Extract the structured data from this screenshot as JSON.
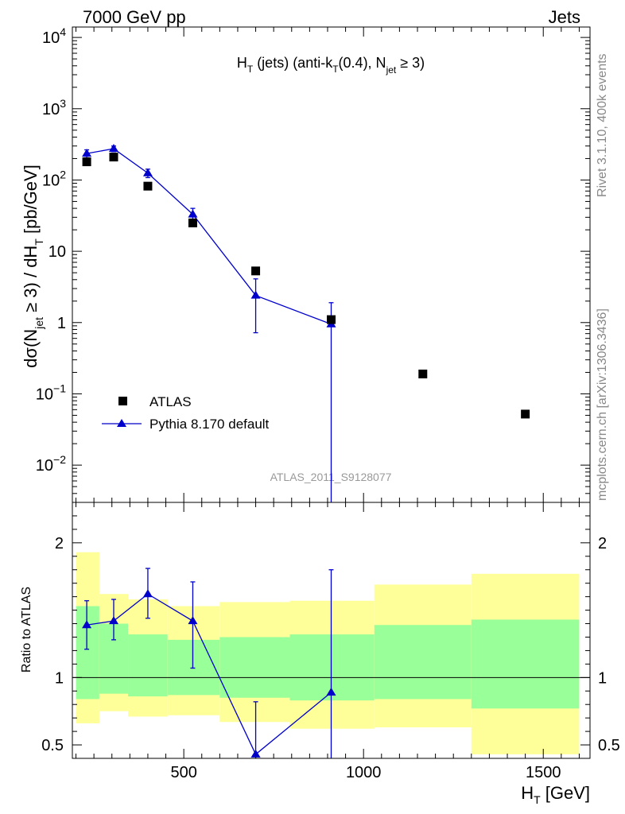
{
  "header": {
    "left": "7000 GeV pp",
    "right": "Jets"
  },
  "side_labels": {
    "rivet": "Rivet 3.1.10,  400k events",
    "mcplots": "mcplots.cern.ch [arXiv:1306.3436]"
  },
  "chart_data": [
    {
      "type": "scatter",
      "panel": "main",
      "title": "H_T (jets) (anti-k_T(0.4), N_jet ≥ 3)",
      "title_parts": {
        "h": "H",
        "h_sub": "T",
        "mid1": " (jets) (anti-k",
        "k_sub": "T",
        "mid2": "(0.4), N",
        "n_sub": "jet",
        "tail": " ≥ 3)"
      },
      "ylabel": "dσ(N_jet ≥ 3) / dH_T [pb/GeV]",
      "ylabel_parts": {
        "a": "dσ(N",
        "a_sub": "jet",
        "b": " ≥ 3) / dH",
        "b_sub": "T",
        "c": " [pb/GeV]"
      },
      "yscale": "log",
      "ylim": [
        0.003,
        14000
      ],
      "xlim": [
        190,
        1630
      ],
      "y_ticks": [
        {
          "value": 10000,
          "label": "10",
          "exp": "4"
        },
        {
          "value": 1000,
          "label": "10",
          "exp": "3"
        },
        {
          "value": 100,
          "label": "10",
          "exp": "2"
        },
        {
          "value": 10,
          "label": "10",
          "exp": ""
        },
        {
          "value": 1,
          "label": "1",
          "exp": ""
        },
        {
          "value": 0.1,
          "label": "10",
          "exp": "−1"
        },
        {
          "value": 0.01,
          "label": "10",
          "exp": "−2"
        }
      ],
      "watermark": "ATLAS_2011_S9128077",
      "legend_position": "bottom-left",
      "series": [
        {
          "name": "ATLAS",
          "marker": "square",
          "color": "#000000",
          "x": [
            230,
            305,
            400,
            525,
            700,
            910,
            1165,
            1450
          ],
          "y": [
            180,
            210,
            82,
            25,
            5.3,
            1.1,
            0.19,
            0.052
          ]
        },
        {
          "name": "Pythia 8.170 default",
          "marker": "triangle",
          "color": "#0000cc",
          "x": [
            230,
            305,
            400,
            525,
            700,
            910
          ],
          "y": [
            235,
            275,
            125,
            33,
            2.4,
            0.95
          ],
          "y_low": [
            205,
            250,
            108,
            27,
            0.72,
            0.003
          ],
          "y_high": [
            265,
            300,
            142,
            40,
            4.1,
            1.9
          ]
        }
      ]
    },
    {
      "type": "line",
      "panel": "ratio",
      "ylabel": "Ratio to ATLAS",
      "xlabel": "H_T [GeV]",
      "xlabel_parts": {
        "h": "H",
        "h_sub": "T",
        "unit": " [GeV]"
      },
      "xlim": [
        190,
        1630
      ],
      "ylim": [
        0.4,
        2.3
      ],
      "x_ticks": [
        {
          "value": 500,
          "label": "500"
        },
        {
          "value": 1000,
          "label": "1000"
        },
        {
          "value": 1500,
          "label": "1500"
        }
      ],
      "y_ticks": [
        {
          "value": 2,
          "label": "2"
        },
        {
          "value": 1,
          "label": "1"
        },
        {
          "value": 0.5,
          "label": "0.5"
        }
      ],
      "bands": {
        "edges": [
          200,
          265,
          345,
          455,
          600,
          795,
          1030,
          1300,
          1600
        ],
        "yellow_low": [
          0.66,
          0.75,
          0.71,
          0.72,
          0.67,
          0.62,
          0.63,
          0.43
        ],
        "yellow_high": [
          1.93,
          1.62,
          1.58,
          1.53,
          1.56,
          1.57,
          1.69,
          1.77
        ],
        "green_low": [
          0.84,
          0.88,
          0.86,
          0.87,
          0.85,
          0.83,
          0.84,
          0.77
        ],
        "green_high": [
          1.53,
          1.4,
          1.32,
          1.28,
          1.3,
          1.32,
          1.39,
          1.43
        ]
      },
      "series": [
        {
          "name": "Pythia 8.170 default",
          "color": "#0000cc",
          "x": [
            230,
            305,
            400,
            525,
            700,
            910
          ],
          "y": [
            1.39,
            1.42,
            1.62,
            1.42,
            0.43,
            0.89
          ],
          "y_low": [
            1.21,
            1.28,
            1.44,
            1.07,
            0.4,
            0.4
          ],
          "y_high": [
            1.57,
            1.58,
            1.81,
            1.71,
            0.82,
            1.8
          ]
        }
      ]
    }
  ],
  "colors": {
    "band_yellow": "#ffff99",
    "band_green": "#99ff99",
    "mc": "#0000cc",
    "data": "#000000",
    "side_text": "#888888"
  }
}
